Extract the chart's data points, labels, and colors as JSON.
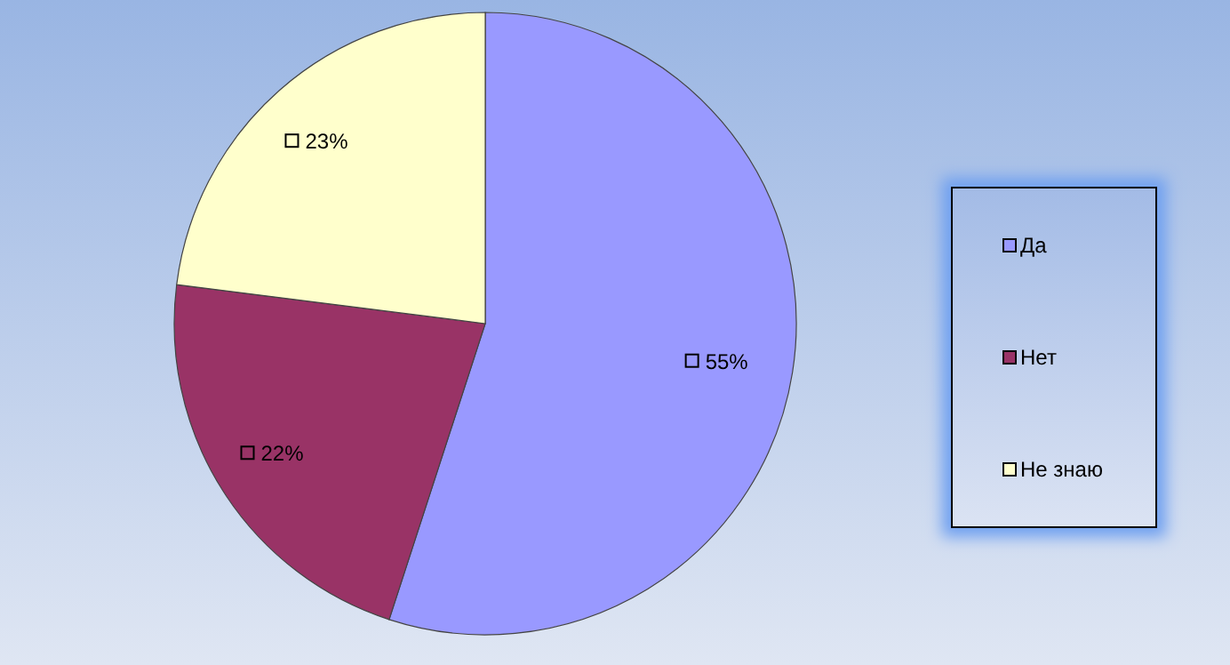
{
  "chart_data": {
    "type": "pie",
    "categories": [
      "Да",
      "Нет",
      "Не знаю"
    ],
    "values": [
      55,
      22,
      23
    ],
    "colors": [
      "#9999ff",
      "#993366",
      "#ffffcc"
    ],
    "value_labels": [
      "55%",
      "22%",
      "23%"
    ],
    "legend": "right"
  }
}
